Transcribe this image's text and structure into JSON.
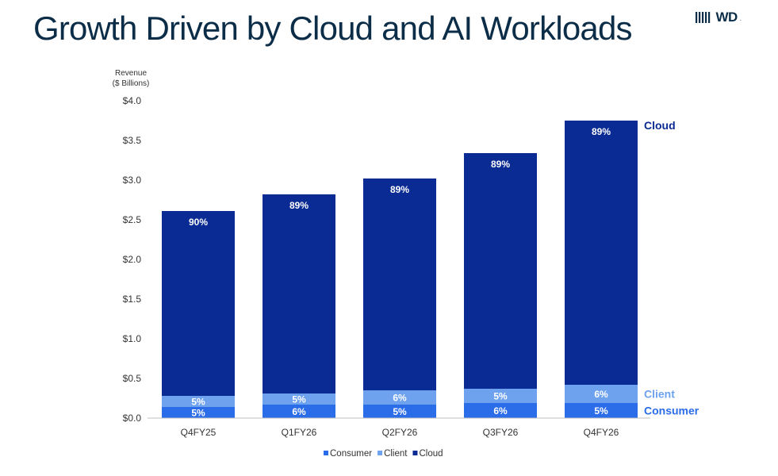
{
  "page": {
    "title": "Growth Driven by Cloud and AI Workloads",
    "logo_text": "WD",
    "logo_mark": "."
  },
  "chart_data": {
    "type": "bar",
    "stacked": true,
    "ylabel_line1": "Revenue",
    "ylabel_line2": "($ Billions)",
    "ylim": [
      0,
      4.0
    ],
    "yticks": [
      0,
      0.5,
      1.0,
      1.5,
      2.0,
      2.5,
      3.0,
      3.5,
      4.0
    ],
    "ytick_labels": [
      "$0.0",
      "$0.5",
      "$1.0",
      "$1.5",
      "$2.0",
      "$2.5",
      "$3.0",
      "$3.5",
      "$4.0"
    ],
    "categories": [
      "Q4FY25",
      "Q1FY26",
      "Q2FY26",
      "Q3FY26",
      "Q4FY26"
    ],
    "series": [
      {
        "name": "Consumer",
        "color": "#2b6ce8",
        "values": [
          0.14,
          0.17,
          0.17,
          0.19,
          0.19
        ],
        "labels": [
          "5%",
          "6%",
          "5%",
          "6%",
          "5%"
        ]
      },
      {
        "name": "Client",
        "color": "#6ea2ee",
        "values": [
          0.14,
          0.14,
          0.18,
          0.18,
          0.23
        ],
        "labels": [
          "5%",
          "5%",
          "6%",
          "5%",
          "6%"
        ]
      },
      {
        "name": "Cloud",
        "color": "#0a2b93",
        "values": [
          2.33,
          2.51,
          2.67,
          2.97,
          3.33
        ],
        "labels": [
          "90%",
          "89%",
          "89%",
          "89%",
          "89%"
        ]
      }
    ],
    "right_labels": [
      {
        "text": "Cloud",
        "color": "#0a2b93"
      },
      {
        "text": "Client",
        "color": "#6ea2ee"
      },
      {
        "text": "Consumer",
        "color": "#2b6ce8"
      }
    ],
    "legend_position": "bottom-center",
    "grid": false
  }
}
